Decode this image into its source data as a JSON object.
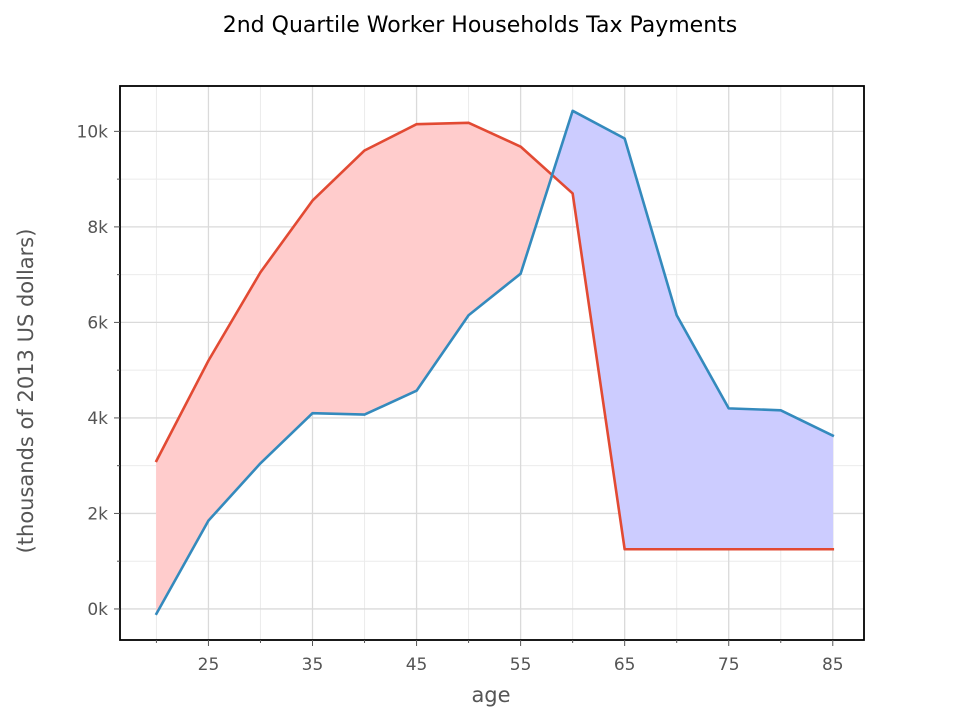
{
  "chart_data": {
    "type": "line",
    "title": "2nd Quartile Worker Households Tax Payments",
    "xlabel": "age",
    "ylabel": "(thousands of 2013 US dollars)",
    "x": [
      20,
      25,
      30,
      35,
      40,
      45,
      50,
      55,
      60,
      65,
      70,
      75,
      80,
      85
    ],
    "series": [
      {
        "values": [
          3.1,
          5.2,
          7.05,
          8.55,
          9.6,
          10.15,
          10.18,
          9.68,
          8.7,
          1.25,
          1.25,
          1.25,
          1.25,
          1.25
        ],
        "color": "#e24a33"
      },
      {
        "values": [
          -0.1,
          1.85,
          3.05,
          4.1,
          4.07,
          4.57,
          6.15,
          7.02,
          10.43,
          9.85,
          6.15,
          4.2,
          4.16,
          3.63
        ],
        "color": "#348abd"
      }
    ],
    "fill_between": {
      "first_series_above_color": "#ffcccc",
      "second_series_above_color": "#ccccff"
    },
    "xlim": [
      16.5,
      88
    ],
    "ylim": [
      -0.65,
      10.95
    ],
    "xticks": [
      25,
      35,
      45,
      55,
      65,
      75,
      85
    ],
    "xtick_labels": [
      "25",
      "35",
      "45",
      "55",
      "65",
      "75",
      "85"
    ],
    "xticks_minor": [
      20,
      30,
      40,
      50,
      60,
      70,
      80
    ],
    "yticks": [
      0,
      2,
      4,
      6,
      8,
      10
    ],
    "ytick_labels": [
      "0k",
      "2k",
      "4k",
      "6k",
      "8k",
      "10k"
    ],
    "yticks_minor": [
      1,
      3,
      5,
      7,
      9
    ],
    "grid": true,
    "legend": "none"
  }
}
